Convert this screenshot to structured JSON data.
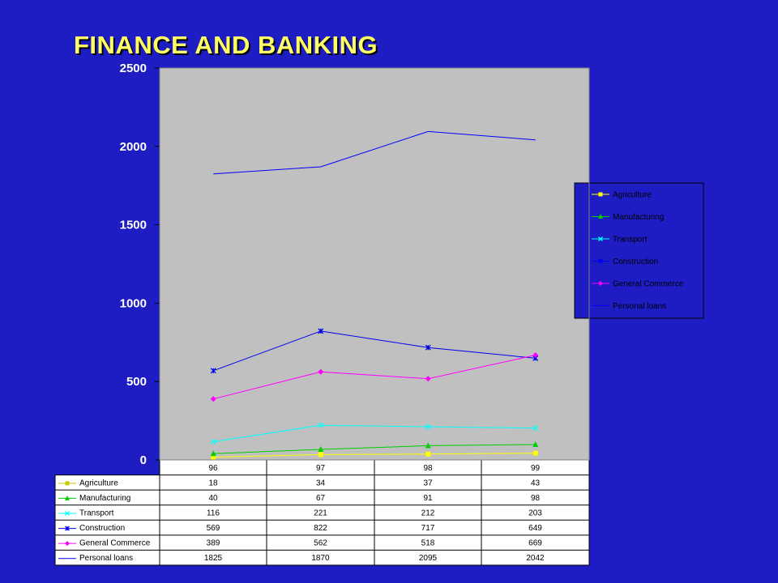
{
  "title": "FINANCE AND BANKING",
  "colors": {
    "background": "#1d1dc3",
    "plot_area": "#c0c0c0",
    "title": "#ffff66"
  },
  "chart_data": {
    "type": "line",
    "categories": [
      "96",
      "97",
      "98",
      "99"
    ],
    "ylim": [
      0,
      2500
    ],
    "yticks": [
      "2500",
      "2000",
      "1500",
      "1000",
      "500",
      "0"
    ],
    "grid": false,
    "legend_position": "right",
    "series": [
      {
        "name": "Agriculture",
        "values": [
          18,
          34,
          37,
          43
        ],
        "color": "#ffff00",
        "marker": "square"
      },
      {
        "name": "Manufacturing",
        "values": [
          40,
          67,
          91,
          98
        ],
        "color": "#00cc00",
        "marker": "triangle"
      },
      {
        "name": "Transport",
        "values": [
          116,
          221,
          212,
          203
        ],
        "color": "#00ffff",
        "marker": "x"
      },
      {
        "name": "Construction",
        "values": [
          569,
          822,
          717,
          649
        ],
        "color": "#0000ee",
        "marker": "star"
      },
      {
        "name": "General Commerce",
        "values": [
          389,
          562,
          518,
          669
        ],
        "color": "#ff00ff",
        "marker": "diamond"
      },
      {
        "name": "Personal loans",
        "values": [
          1825,
          1870,
          2095,
          2042
        ],
        "color": "#0000ff",
        "marker": "none"
      }
    ]
  }
}
